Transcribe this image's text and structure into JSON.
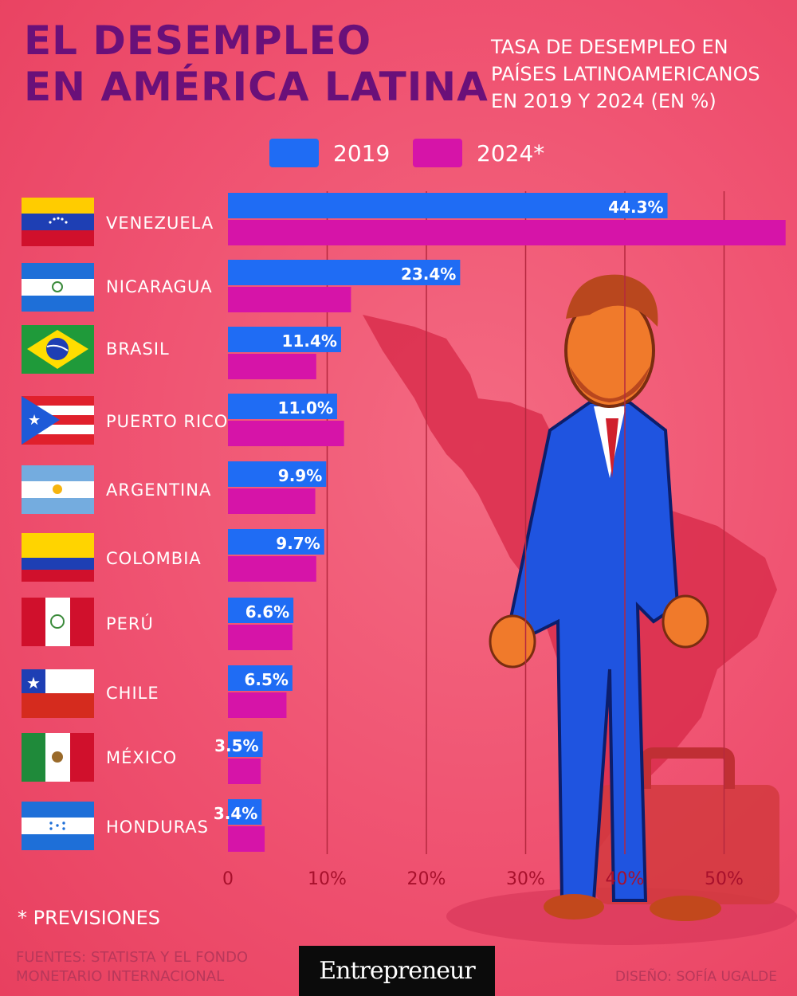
{
  "title_line1": "EL DESEMPLEO",
  "title_line2": "EN AMÉRICA LATINA",
  "subtitle_lines": [
    "TASA DE DESEMPLEO EN",
    "PAÍSES LATINOAMERICANOS",
    "EN 2019 Y 2024 (EN %)"
  ],
  "colors": {
    "series_2019": "#1f6cf4",
    "series_2024": "#d614a8",
    "title": "#6a1079",
    "grid": "#b5283f",
    "tick": "#a8102c"
  },
  "footnote": "* PREVISIONES",
  "sources": "FUENTES: STATISTA Y EL FONDO MONETARIO INTERNACIONAL",
  "logo": "Entrepreneur",
  "credit": "DISEÑO: SOFÍA UGALDE",
  "chart_data": {
    "type": "bar",
    "orientation": "horizontal",
    "categories": [
      "VENEZUELA",
      "NICARAGUA",
      "BRASIL",
      "PUERTO RICO",
      "ARGENTINA",
      "COLOMBIA",
      "PERÚ",
      "CHILE",
      "MÉXICO",
      "HONDURAS"
    ],
    "series": [
      {
        "name": "2019",
        "values": [
          44.3,
          23.4,
          11.4,
          11.0,
          9.9,
          9.7,
          6.6,
          6.5,
          3.5,
          3.4
        ],
        "labels": [
          "44.3%",
          "23.4%",
          "11.4%",
          "11.0%",
          "9.9%",
          "9.7%",
          "6.6%",
          "6.5%",
          "3.5%",
          "3.4%"
        ]
      },
      {
        "name": "2024*",
        "values": [
          56.2,
          12.4,
          8.9,
          11.7,
          8.8,
          8.9,
          6.5,
          5.9,
          3.3,
          3.7
        ]
      }
    ],
    "xlim": [
      0,
      56
    ],
    "xticks": [
      "0",
      "10%",
      "20%",
      "30%",
      "40%",
      "50%"
    ],
    "xtick_values": [
      0,
      10,
      20,
      30,
      40,
      50
    ],
    "grid": true,
    "legend_position": "top"
  },
  "flags": [
    "venezuela-flag",
    "nicaragua-flag",
    "brasil-flag",
    "puerto-rico-flag",
    "argentina-flag",
    "colombia-flag",
    "peru-flag",
    "chile-flag",
    "mexico-flag",
    "honduras-flag"
  ]
}
